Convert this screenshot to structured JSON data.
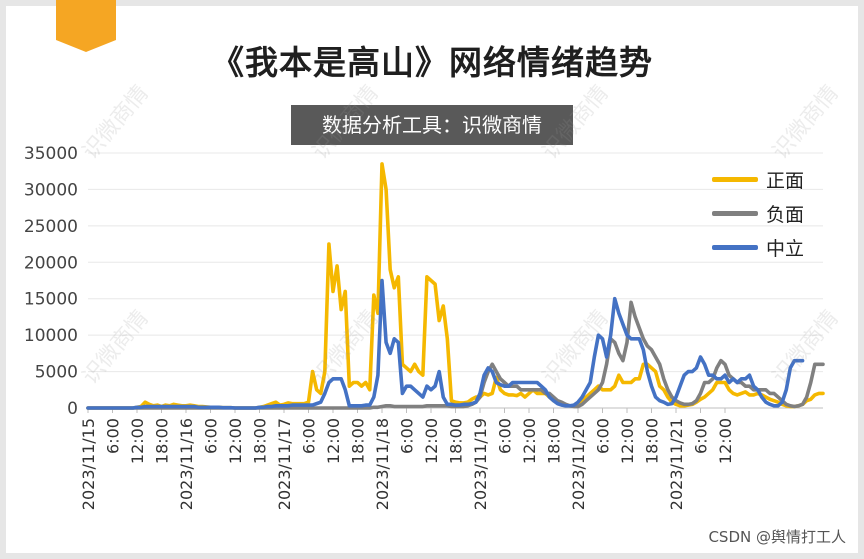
{
  "title": "《我本是高山》网络情绪趋势",
  "subtitle": "数据分析工具：识微商情",
  "watermark_text": "识微商情",
  "credit": "CSDN @舆情打工人",
  "colors": {
    "positive": "#F5B800",
    "negative": "#808080",
    "neutral": "#4472C4",
    "accent": "#F5A623"
  },
  "chart_data": {
    "type": "line",
    "title": "《我本是高山》网络情绪趋势",
    "ylim": [
      0,
      35000
    ],
    "yticks": [
      0,
      5000,
      10000,
      15000,
      20000,
      25000,
      30000,
      35000
    ],
    "x_start": "2023/11/15 00:00",
    "x_step_hours": 1,
    "x_tick_labels": [
      "2023/11/15",
      "6:00",
      "12:00",
      "18:00",
      "2023/11/16",
      "6:00",
      "12:00",
      "18:00",
      "2023/11/17",
      "6:00",
      "12:00",
      "18:00",
      "2023/11/18",
      "6:00",
      "12:00",
      "18:00",
      "2023/11/19",
      "6:00",
      "12:00",
      "18:00",
      "2023/11/20",
      "6:00",
      "12:00",
      "18:00",
      "2023/11/21",
      "6:00",
      "12:00"
    ],
    "legend_position": "top-right",
    "grid": true,
    "series": [
      {
        "name": "正面",
        "values": [
          0,
          0,
          0,
          0,
          0,
          0,
          0,
          0,
          0,
          0,
          0,
          0,
          100,
          200,
          800,
          500,
          300,
          400,
          200,
          400,
          300,
          500,
          400,
          300,
          300,
          400,
          300,
          200,
          200,
          150,
          100,
          100,
          100,
          50,
          50,
          50,
          0,
          0,
          0,
          0,
          0,
          0,
          100,
          200,
          400,
          600,
          800,
          400,
          500,
          700,
          600,
          600,
          600,
          600,
          800,
          5000,
          2500,
          2000,
          5000,
          22500,
          16000,
          19500,
          13500,
          16000,
          3000,
          3500,
          3500,
          3000,
          3500,
          2500,
          15500,
          13000,
          33500,
          30000,
          19000,
          16500,
          18000,
          6000,
          5500,
          5000,
          6000,
          5000,
          4500,
          18000,
          17500,
          17000,
          12000,
          14000,
          9500,
          1000,
          800,
          700,
          700,
          800,
          1200,
          1500,
          1500,
          2000,
          1800,
          2000,
          4200,
          2500,
          2000,
          1800,
          1800,
          1700,
          2000,
          1500,
          2000,
          2500,
          2000,
          2000,
          2000,
          1500,
          1000,
          800,
          500,
          400,
          300,
          300,
          500,
          1000,
          1500,
          2000,
          2500,
          3000,
          2500,
          2500,
          2500,
          3000,
          4500,
          3500,
          3500,
          3500,
          4000,
          4000,
          6000,
          6000,
          5500,
          5000,
          3000,
          2500,
          1500,
          800,
          500,
          300,
          300,
          400,
          500,
          800,
          1200,
          1500,
          2000,
          2500,
          3500,
          3500,
          3500,
          2500,
          2000,
          1800,
          2000,
          2200,
          1800,
          1800,
          2000,
          1800,
          1500,
          1200,
          1000,
          800,
          500,
          300,
          200,
          200,
          300,
          500,
          1000,
          1200,
          1800,
          2000,
          2000
        ],
        "color_key": "positive"
      },
      {
        "name": "负面",
        "values": [
          0,
          0,
          0,
          0,
          0,
          0,
          0,
          0,
          0,
          0,
          0,
          0,
          0,
          0,
          0,
          0,
          0,
          0,
          0,
          0,
          0,
          0,
          0,
          0,
          0,
          0,
          0,
          0,
          0,
          0,
          0,
          0,
          0,
          0,
          0,
          0,
          0,
          0,
          0,
          0,
          0,
          0,
          0,
          0,
          0,
          0,
          0,
          0,
          0,
          0,
          0,
          0,
          0,
          0,
          0,
          0,
          0,
          0,
          0,
          0,
          0,
          0,
          0,
          0,
          0,
          0,
          0,
          0,
          0,
          0,
          100,
          100,
          200,
          300,
          300,
          200,
          200,
          200,
          200,
          200,
          200,
          200,
          200,
          300,
          300,
          300,
          300,
          300,
          300,
          200,
          200,
          200,
          200,
          300,
          500,
          800,
          1500,
          3500,
          5000,
          6000,
          5000,
          4000,
          3500,
          3000,
          3000,
          3000,
          2500,
          2500,
          2500,
          2500,
          2500,
          2500,
          2000,
          2000,
          1500,
          1000,
          800,
          500,
          300,
          200,
          200,
          500,
          1000,
          1500,
          2000,
          2500,
          3500,
          6000,
          9500,
          9000,
          7500,
          6500,
          9000,
          14500,
          12500,
          11000,
          9500,
          8500,
          8000,
          7000,
          6000,
          4000,
          2500,
          1500,
          1000,
          700,
          500,
          500,
          600,
          1000,
          2000,
          3500,
          3500,
          4000,
          5500,
          6500,
          6000,
          4500,
          4000,
          3500,
          3500,
          3000,
          3000,
          2500,
          2500,
          2500,
          2500,
          2000,
          2000,
          1500,
          1000,
          500,
          300,
          200,
          300,
          500,
          1500,
          3500,
          6000,
          6000,
          6000
        ],
        "color_key": "negative"
      },
      {
        "name": "中立",
        "values": [
          0,
          0,
          0,
          0,
          0,
          0,
          0,
          0,
          0,
          0,
          0,
          0,
          100,
          100,
          200,
          200,
          200,
          200,
          200,
          200,
          200,
          200,
          200,
          200,
          200,
          200,
          200,
          100,
          100,
          100,
          100,
          100,
          100,
          50,
          50,
          50,
          0,
          0,
          0,
          0,
          0,
          0,
          100,
          100,
          200,
          200,
          300,
          300,
          300,
          300,
          400,
          400,
          400,
          400,
          400,
          400,
          600,
          800,
          2000,
          3500,
          4000,
          4000,
          4000,
          2500,
          300,
          300,
          300,
          300,
          400,
          400,
          1500,
          4500,
          17500,
          9000,
          7500,
          9500,
          9000,
          2000,
          3000,
          3000,
          2500,
          2000,
          1500,
          3000,
          2500,
          3000,
          5000,
          1500,
          500,
          500,
          400,
          400,
          500,
          500,
          600,
          800,
          2000,
          4500,
          5500,
          5000,
          3500,
          3200,
          3000,
          3000,
          3500,
          3500,
          3500,
          3500,
          3500,
          3500,
          3500,
          3000,
          2500,
          1500,
          1000,
          600,
          400,
          300,
          300,
          400,
          800,
          1500,
          2500,
          3500,
          7000,
          10000,
          9500,
          7000,
          10000,
          15000,
          13000,
          11500,
          10000,
          9500,
          9500,
          9500,
          8000,
          5000,
          3000,
          1500,
          1000,
          800,
          500,
          600,
          1500,
          3000,
          4500,
          5000,
          5000,
          5500,
          7000,
          6000,
          4500,
          4500,
          4000,
          4000,
          4500,
          3500,
          4000,
          3500,
          4000,
          4000,
          4500,
          3000,
          2500,
          1500,
          800,
          500,
          300,
          300,
          800,
          2500,
          5500,
          6500,
          6500,
          6500
        ],
        "color_key": "neutral"
      }
    ]
  }
}
